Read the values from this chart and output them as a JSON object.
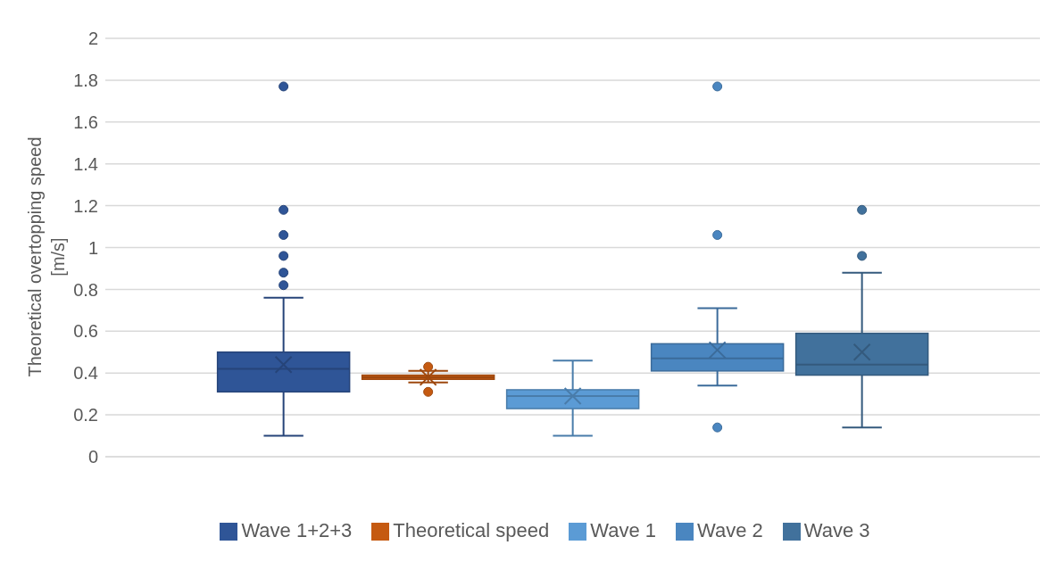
{
  "chart_data": {
    "type": "box",
    "ylabel": "Theoretical overtopping speed [m/s]",
    "categories": [
      null
    ],
    "series": [
      {
        "name": "Wave 1+2+3",
        "color": "#2f5597",
        "boxes": [
          {
            "low": 0.1,
            "q1": 0.31,
            "median": 0.42,
            "q3": 0.5,
            "high": 0.76,
            "mean": 0.44,
            "outliers": [
              1.77,
              1.18,
              1.06,
              0.96,
              0.88,
              0.82
            ]
          }
        ]
      },
      {
        "name": "Theoretical speed",
        "color": "#c55a11",
        "boxes": [
          {
            "low": 0.355,
            "q1": 0.37,
            "median": 0.38,
            "q3": 0.39,
            "high": 0.41,
            "mean": 0.38,
            "outliers": [
              0.43,
              0.31
            ]
          }
        ]
      },
      {
        "name": "Wave 1",
        "color": "#5b9bd5",
        "boxes": [
          {
            "low": 0.1,
            "q1": 0.23,
            "median": 0.29,
            "q3": 0.32,
            "high": 0.46,
            "mean": 0.29
          }
        ]
      },
      {
        "name": "Wave 2",
        "color": "#4a86c0",
        "boxes": [
          {
            "low": 0.34,
            "q1": 0.41,
            "median": 0.47,
            "q3": 0.54,
            "high": 0.71,
            "mean": 0.51,
            "outliers": [
              1.77,
              1.06,
              0.14
            ]
          }
        ]
      },
      {
        "name": "Wave 3",
        "color": "#41719c",
        "boxes": [
          {
            "low": 0.14,
            "q1": 0.39,
            "median": 0.44,
            "q3": 0.59,
            "high": 0.88,
            "mean": 0.5,
            "outliers": [
              1.18,
              0.96
            ]
          }
        ]
      }
    ],
    "ylim": [
      0,
      2
    ],
    "yticks": [
      0,
      0.2,
      0.4,
      0.6,
      0.8,
      1,
      1.2,
      1.4,
      1.6,
      1.8,
      2
    ],
    "grid": "y",
    "legend": "bottom"
  }
}
